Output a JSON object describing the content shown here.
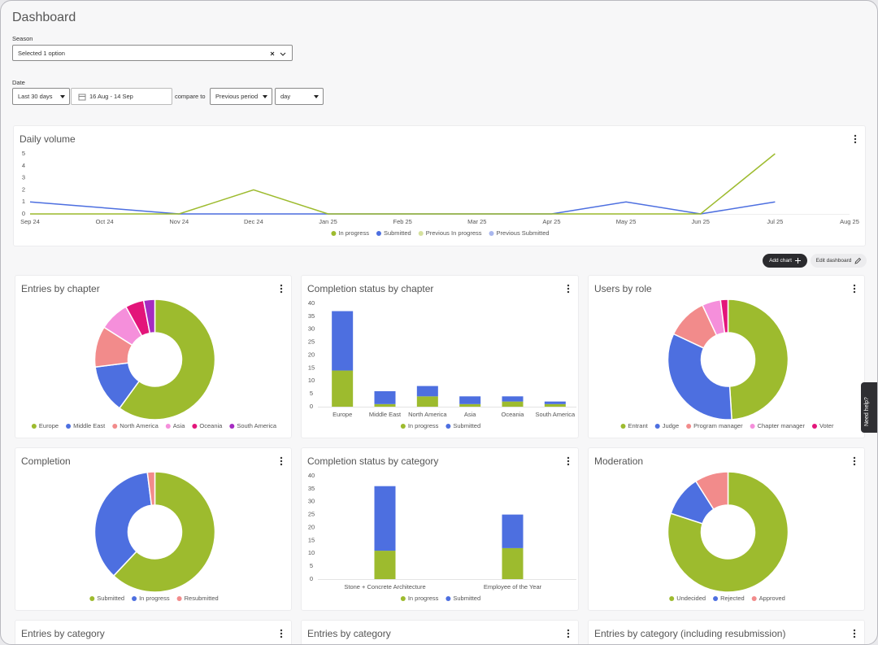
{
  "header": {
    "title": "Dashboard"
  },
  "filters": {
    "season_label": "Season",
    "season_value": "Selected 1 option",
    "date_label": "Date",
    "range": "Last 30 days",
    "dates": "16 Aug - 14 Sep",
    "compare_label": "compare to",
    "compare": "Previous period",
    "interval": "day"
  },
  "actions": {
    "add_chart": "Add chart",
    "edit_dashboard": "Edit dashboard"
  },
  "help": "Need help?",
  "chart_data": [
    {
      "type": "line",
      "title": "Daily volume",
      "x": [
        "Sep 24",
        "Oct 24",
        "Nov 24",
        "Dec 24",
        "Jan 25",
        "Feb 25",
        "Mar 25",
        "Apr 25",
        "May 25",
        "Jun 25",
        "Jul 25",
        "Aug 25"
      ],
      "series": [
        {
          "name": "In progress",
          "color": "#9dbb2e",
          "values": [
            0,
            0,
            0,
            2,
            0,
            0,
            0,
            0,
            0,
            0,
            5,
            null
          ]
        },
        {
          "name": "Submitted",
          "color": "#4d6fe0",
          "values": [
            1,
            0.5,
            0,
            0,
            0,
            0,
            0,
            0,
            1,
            0,
            1,
            null
          ]
        },
        {
          "name": "Previous In progress",
          "color": "#d5e19e",
          "values": [
            null,
            null,
            null,
            null,
            null,
            null,
            null,
            null,
            null,
            null,
            null,
            null
          ]
        },
        {
          "name": "Previous Submitted",
          "color": "#a9b7ee",
          "values": [
            null,
            null,
            null,
            null,
            null,
            null,
            null,
            null,
            null,
            null,
            null,
            null
          ]
        }
      ],
      "ylim": [
        0,
        5
      ],
      "yticks": [
        0,
        1,
        2,
        3,
        4,
        5
      ],
      "grid": false
    },
    {
      "type": "pie",
      "title": "Entries by chapter",
      "categories": [
        "Europe",
        "Middle East",
        "North America",
        "Asia",
        "Oceania",
        "South America"
      ],
      "values": [
        60,
        13,
        11,
        8,
        5,
        3
      ],
      "colors": [
        "#9dbb2e",
        "#4d6fe0",
        "#f28b8b",
        "#f58fdb",
        "#e3157a",
        "#a52bc2"
      ]
    },
    {
      "type": "bar",
      "title": "Completion status by chapter",
      "stacked": true,
      "categories": [
        "Europe",
        "Middle East",
        "North America",
        "Asia",
        "Oceania",
        "South America"
      ],
      "series": [
        {
          "name": "In progress",
          "color": "#9dbb2e",
          "values": [
            14,
            1,
            4,
            1,
            2,
            1
          ]
        },
        {
          "name": "Submitted",
          "color": "#4d6fe0",
          "values": [
            23,
            5,
            4,
            3,
            2,
            1
          ]
        }
      ],
      "ylim": [
        0,
        40
      ],
      "yticks": [
        0,
        5,
        10,
        15,
        20,
        25,
        30,
        35,
        40
      ]
    },
    {
      "type": "pie",
      "title": "Users by role",
      "categories": [
        "Entrant",
        "Judge",
        "Program manager",
        "Chapter manager",
        "Voter"
      ],
      "values": [
        49,
        33,
        11,
        5,
        2
      ],
      "colors": [
        "#9dbb2e",
        "#4d6fe0",
        "#f28b8b",
        "#f58fdb",
        "#e3157a"
      ]
    },
    {
      "type": "pie",
      "title": "Completion",
      "categories": [
        "Submitted",
        "In progress",
        "Resubmitted"
      ],
      "values": [
        62,
        36,
        2
      ],
      "colors": [
        "#9dbb2e",
        "#4d6fe0",
        "#f28b8b"
      ]
    },
    {
      "type": "bar",
      "title": "Completion status by category",
      "stacked": true,
      "categories": [
        "Stone + Concrete Architecture",
        "Employee of the Year"
      ],
      "series": [
        {
          "name": "In progress",
          "color": "#9dbb2e",
          "values": [
            11,
            12
          ]
        },
        {
          "name": "Submitted",
          "color": "#4d6fe0",
          "values": [
            25,
            13
          ]
        }
      ],
      "ylim": [
        0,
        40
      ],
      "yticks": [
        0,
        5,
        10,
        15,
        20,
        25,
        30,
        35,
        40
      ]
    },
    {
      "type": "pie",
      "title": "Moderation",
      "categories": [
        "Undecided",
        "Rejected",
        "Approved"
      ],
      "values": [
        80,
        11,
        9
      ],
      "colors": [
        "#9dbb2e",
        "#4d6fe0",
        "#f28b8b"
      ]
    }
  ],
  "more_cards": [
    "Entries by category",
    "Entries by category",
    "Entries by category (including resubmission)"
  ]
}
